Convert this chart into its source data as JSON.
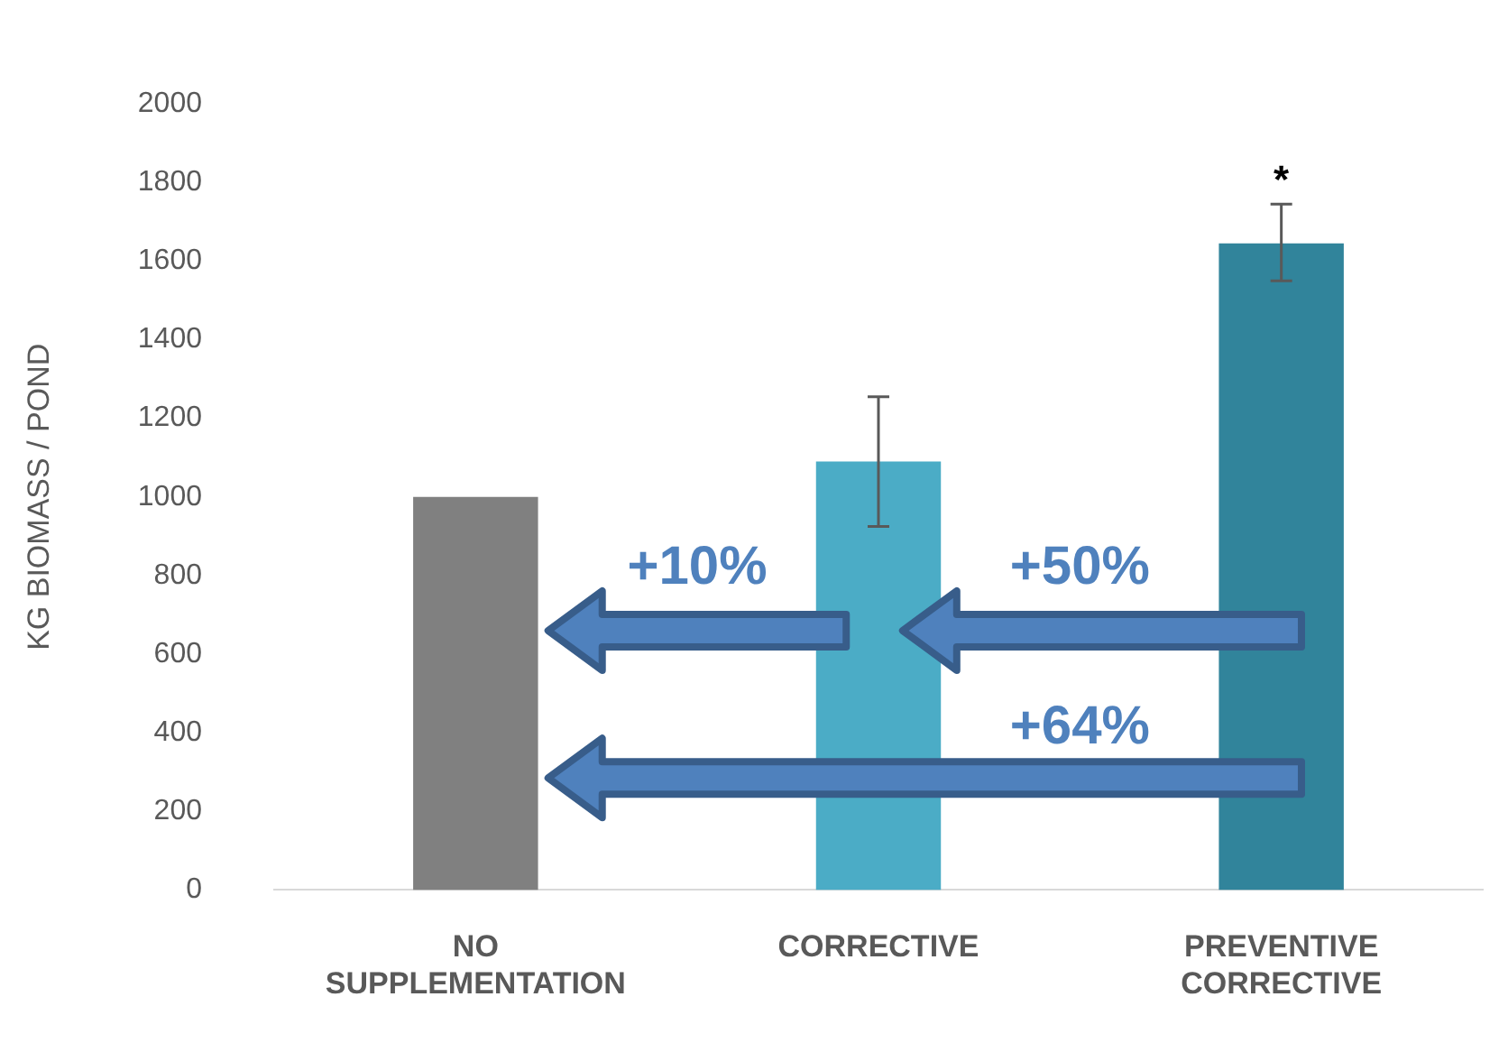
{
  "chart_data": {
    "type": "bar",
    "ylabel": "KG BIOMASS / POND",
    "categories": [
      "NO SUPPLEMENTATION",
      "CORRECTIVE",
      "PREVENTIVE CORRECTIVE"
    ],
    "values": [
      1000,
      1090,
      1645
    ],
    "colors": [
      "#808080",
      "#4bacc6",
      "#31849b"
    ],
    "errors": [
      null,
      [
        925,
        1255
      ],
      [
        1550,
        1745
      ]
    ],
    "ylim": [
      0,
      2000
    ],
    "yticks": [
      0,
      200,
      400,
      600,
      800,
      1000,
      1200,
      1400,
      1600,
      1800,
      2000
    ],
    "grid": false,
    "legend": false,
    "annotations": [
      "+10%",
      "+50%",
      "+64%",
      "*"
    ]
  }
}
